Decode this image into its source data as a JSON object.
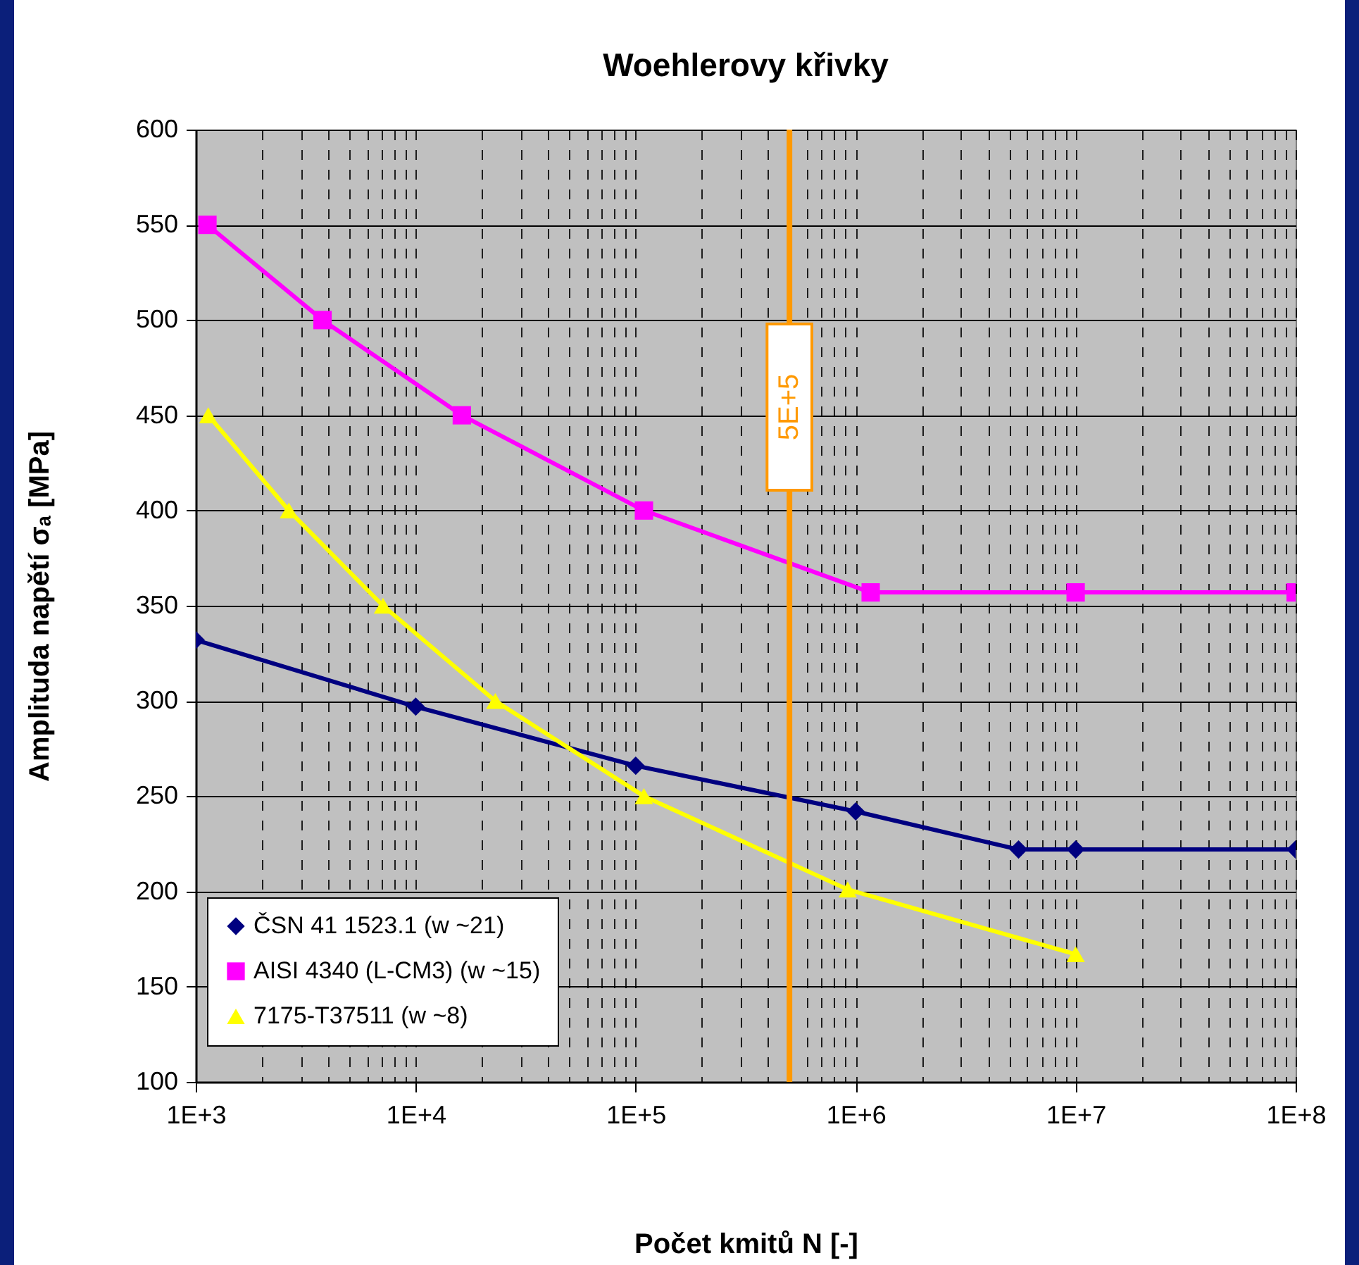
{
  "chart_data": {
    "type": "line",
    "title": "Woehlerovy křivky",
    "xlabel": "Počet kmitů N [-]",
    "ylabel": "Amplituda napětí  σₐ [MPa]",
    "log": "x",
    "xlim": [
      1000,
      100000000
    ],
    "xticks": [
      {
        "value": 1000,
        "label": "1E+3"
      },
      {
        "value": 10000,
        "label": "1E+4"
      },
      {
        "value": 100000,
        "label": "1E+5"
      },
      {
        "value": 1000000,
        "label": "1E+6"
      },
      {
        "value": 10000000,
        "label": "1E+7"
      },
      {
        "value": 100000000,
        "label": "1E+8"
      }
    ],
    "ylim": [
      100,
      600
    ],
    "yticks": [
      100,
      150,
      200,
      250,
      300,
      350,
      400,
      450,
      500,
      550,
      600
    ],
    "grid": true,
    "legend": "bottom left",
    "line_style": "solid",
    "series": [
      {
        "name": "ČSN 41 1523.1 (w ~21)",
        "color": "#000080",
        "marker": "diamond",
        "x": [
          1000,
          10000,
          100000,
          1000000,
          5500000,
          10000000,
          100000000
        ],
        "values": [
          332,
          297,
          266,
          242,
          222,
          222,
          222
        ]
      },
      {
        "name": "AISI 4340 (L-CM3) (w ~15)",
        "color": "#ff00ff",
        "marker": "square",
        "x": [
          1130,
          3770,
          16200,
          109000,
          1170000,
          10000000,
          100000000
        ],
        "values": [
          550,
          500,
          450,
          400,
          357,
          357,
          357
        ]
      },
      {
        "name": "7175-T37511 (w ~8)",
        "color": "#ffff00",
        "marker": "triangle",
        "x": [
          1140,
          2650,
          7100,
          23000,
          109000,
          920000,
          10000000
        ],
        "values": [
          450,
          400,
          350,
          300,
          250,
          201,
          167
        ]
      }
    ],
    "ref_lines": [
      {
        "axis": "x",
        "value": 500000,
        "label": "5E+5",
        "color": "#ff9900"
      }
    ]
  }
}
